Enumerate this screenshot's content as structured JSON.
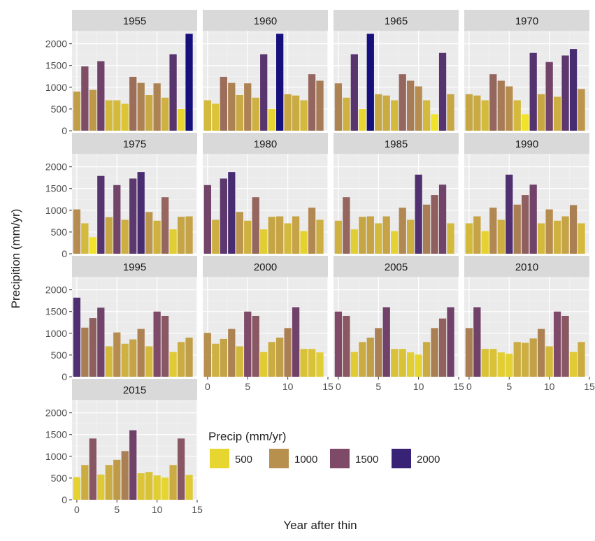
{
  "chart_data": {
    "type": "bar",
    "faceted": true,
    "xlabel": "Year after thin",
    "ylabel": "Precipition (mm/yr)",
    "x_ticks": [
      0,
      5,
      10,
      15
    ],
    "y_ticks": [
      0,
      500,
      1000,
      1500,
      2000
    ],
    "xlim": [
      -0.6,
      15
    ],
    "ylim": [
      0,
      2300
    ],
    "legend": {
      "title": "Precip (mm/yr)",
      "position": "bottom-right",
      "entries": [
        "500",
        "1000",
        "1500",
        "2000"
      ],
      "color_stops": [
        {
          "value": 400,
          "color": "#f0e32a"
        },
        {
          "value": 1000,
          "color": "#b8904e"
        },
        {
          "value": 1500,
          "color": "#7e4a67"
        },
        {
          "value": 2300,
          "color": "#0c0a7e"
        }
      ]
    },
    "panels": [
      {
        "label": "1955",
        "values": [
          900,
          1480,
          940,
          1600,
          700,
          700,
          620,
          1240,
          1100,
          820,
          1090,
          760,
          1760,
          500,
          2230
        ]
      },
      {
        "label": "1960",
        "values": [
          700,
          620,
          1240,
          1100,
          820,
          1090,
          760,
          1760,
          500,
          2230,
          840,
          810,
          700,
          1300,
          1150
        ]
      },
      {
        "label": "1965",
        "values": [
          1090,
          760,
          1760,
          500,
          2230,
          840,
          810,
          700,
          1300,
          1150,
          1020,
          700,
          380,
          1790,
          840
        ]
      },
      {
        "label": "1970",
        "values": [
          840,
          810,
          700,
          1300,
          1150,
          1020,
          700,
          380,
          1790,
          840,
          1580,
          780,
          1730,
          1880,
          960
        ]
      },
      {
        "label": "1975",
        "values": [
          1020,
          700,
          380,
          1790,
          840,
          1580,
          780,
          1730,
          1880,
          960,
          760,
          1300,
          560,
          850,
          860
        ]
      },
      {
        "label": "1980",
        "values": [
          1580,
          780,
          1730,
          1880,
          960,
          760,
          1300,
          560,
          850,
          860,
          700,
          860,
          520,
          1060,
          780
        ]
      },
      {
        "label": "1985",
        "values": [
          760,
          1300,
          560,
          850,
          860,
          700,
          860,
          520,
          1060,
          780,
          1820,
          1130,
          1350,
          1590,
          700
        ]
      },
      {
        "label": "1990",
        "values": [
          700,
          860,
          520,
          1060,
          780,
          1820,
          1130,
          1350,
          1590,
          700,
          1020,
          760,
          860,
          1120,
          700
        ]
      },
      {
        "label": "1995",
        "values": [
          1820,
          1130,
          1350,
          1590,
          700,
          1020,
          760,
          860,
          1100,
          700,
          1500,
          1400,
          570,
          800,
          900
        ]
      },
      {
        "label": "2000",
        "values": [
          1010,
          760,
          870,
          1100,
          700,
          1500,
          1400,
          570,
          800,
          900,
          1120,
          1600,
          640,
          640,
          560
        ]
      },
      {
        "label": "2005",
        "values": [
          1500,
          1400,
          570,
          800,
          900,
          1120,
          1600,
          640,
          640,
          560,
          510,
          800,
          1120,
          1340,
          1600
        ]
      },
      {
        "label": "2010",
        "values": [
          1120,
          1600,
          640,
          640,
          560,
          530,
          800,
          780,
          880,
          1100,
          700,
          1500,
          1400,
          570,
          800
        ]
      },
      {
        "label": "2015",
        "values": [
          520,
          800,
          1410,
          580,
          800,
          920,
          1120,
          1600,
          610,
          640,
          560,
          510,
          800,
          1410,
          570
        ]
      }
    ]
  }
}
